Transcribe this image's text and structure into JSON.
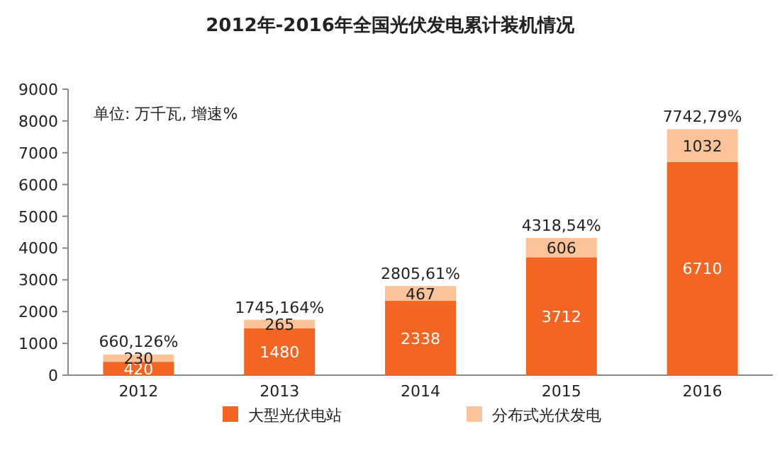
{
  "chart_data": {
    "type": "bar",
    "stacked": true,
    "title": "2012年-2016年全国光伏发电累计装机情况",
    "annotations": [
      "单位: 万千瓦, 增速%",
      {
        "text": "660,126%",
        "x": "2012",
        "y": 660
      },
      {
        "text": "1745,164%",
        "x": "2013",
        "y": 1745
      },
      {
        "text": "2805,61%",
        "x": "2014",
        "y": 2805
      },
      {
        "text": "4318,54%",
        "x": "2015",
        "y": 4318
      },
      {
        "text": "7742,79%",
        "x": "2016",
        "y": 7742
      }
    ],
    "categories": [
      "2012",
      "2013",
      "2014",
      "2015",
      "2016"
    ],
    "series": [
      {
        "name": "大型光伏电站",
        "color": "#f26522",
        "values": [
          420,
          1480,
          2338,
          3712,
          6710
        ]
      },
      {
        "name": "分布式光伏发电",
        "color": "#fbc39a",
        "values": [
          230,
          265,
          467,
          606,
          1032
        ]
      }
    ],
    "data_labels": true,
    "ylim": [
      0,
      9000
    ],
    "yticks": [
      0,
      1000,
      2000,
      3000,
      4000,
      5000,
      6000,
      7000,
      8000,
      9000
    ],
    "grid": false,
    "legend": "bottom"
  }
}
